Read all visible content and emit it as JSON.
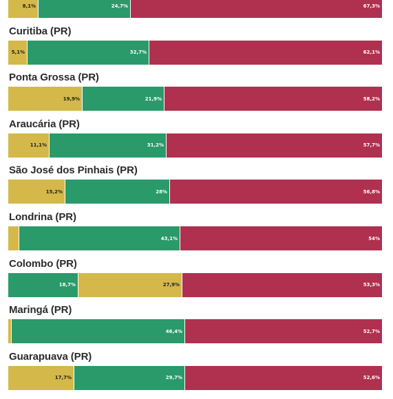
{
  "colors": {
    "yellow": "#d4b84a",
    "green": "#2a9a6a",
    "red": "#b0304f"
  },
  "chart_data": {
    "type": "bar",
    "orientation": "horizontal-stacked-100",
    "rows": [
      {
        "title": "",
        "segments": [
          {
            "color": "yellow",
            "value": 8.1,
            "label": "8,1%"
          },
          {
            "color": "green",
            "value": 24.7,
            "label": "24,7%"
          },
          {
            "color": "red",
            "value": 67.3,
            "label": "67,3%"
          }
        ]
      },
      {
        "title": "Curitiba (PR)",
        "segments": [
          {
            "color": "yellow",
            "value": 5.1,
            "label": "5,1%"
          },
          {
            "color": "green",
            "value": 32.7,
            "label": "32,7%"
          },
          {
            "color": "red",
            "value": 62.1,
            "label": "62,1%"
          }
        ]
      },
      {
        "title": "Ponta Grossa (PR)",
        "segments": [
          {
            "color": "yellow",
            "value": 19.9,
            "label": "19,9%"
          },
          {
            "color": "green",
            "value": 21.9,
            "label": "21,9%"
          },
          {
            "color": "red",
            "value": 58.2,
            "label": "58,2%"
          }
        ]
      },
      {
        "title": "Araucária (PR)",
        "segments": [
          {
            "color": "yellow",
            "value": 11.1,
            "label": "11,1%"
          },
          {
            "color": "green",
            "value": 31.2,
            "label": "31,2%"
          },
          {
            "color": "red",
            "value": 57.7,
            "label": "57,7%"
          }
        ]
      },
      {
        "title": "São José dos Pinhais (PR)",
        "segments": [
          {
            "color": "yellow",
            "value": 15.2,
            "label": "15,2%"
          },
          {
            "color": "green",
            "value": 28,
            "label": "28%"
          },
          {
            "color": "red",
            "value": 56.8,
            "label": "56,8%"
          }
        ]
      },
      {
        "title": "Londrina (PR)",
        "segments": [
          {
            "color": "yellow",
            "value": 2.9,
            "label": ""
          },
          {
            "color": "green",
            "value": 43.1,
            "label": "43,1%"
          },
          {
            "color": "red",
            "value": 54,
            "label": "54%"
          }
        ]
      },
      {
        "title": "Colombo (PR)",
        "segments": [
          {
            "color": "green",
            "value": 18.7,
            "label": "18,7%"
          },
          {
            "color": "yellow",
            "value": 27.9,
            "label": "27,9%"
          },
          {
            "color": "red",
            "value": 53.3,
            "label": "53,3%"
          }
        ]
      },
      {
        "title": "Maringá (PR)",
        "segments": [
          {
            "color": "yellow",
            "value": 0.9,
            "label": ""
          },
          {
            "color": "green",
            "value": 46.4,
            "label": "46,4%"
          },
          {
            "color": "red",
            "value": 52.7,
            "label": "52,7%"
          }
        ]
      },
      {
        "title": "Guarapuava (PR)",
        "segments": [
          {
            "color": "yellow",
            "value": 17.7,
            "label": "17,7%"
          },
          {
            "color": "green",
            "value": 29.7,
            "label": "29,7%"
          },
          {
            "color": "red",
            "value": 52.6,
            "label": "52,6%"
          }
        ]
      }
    ]
  }
}
